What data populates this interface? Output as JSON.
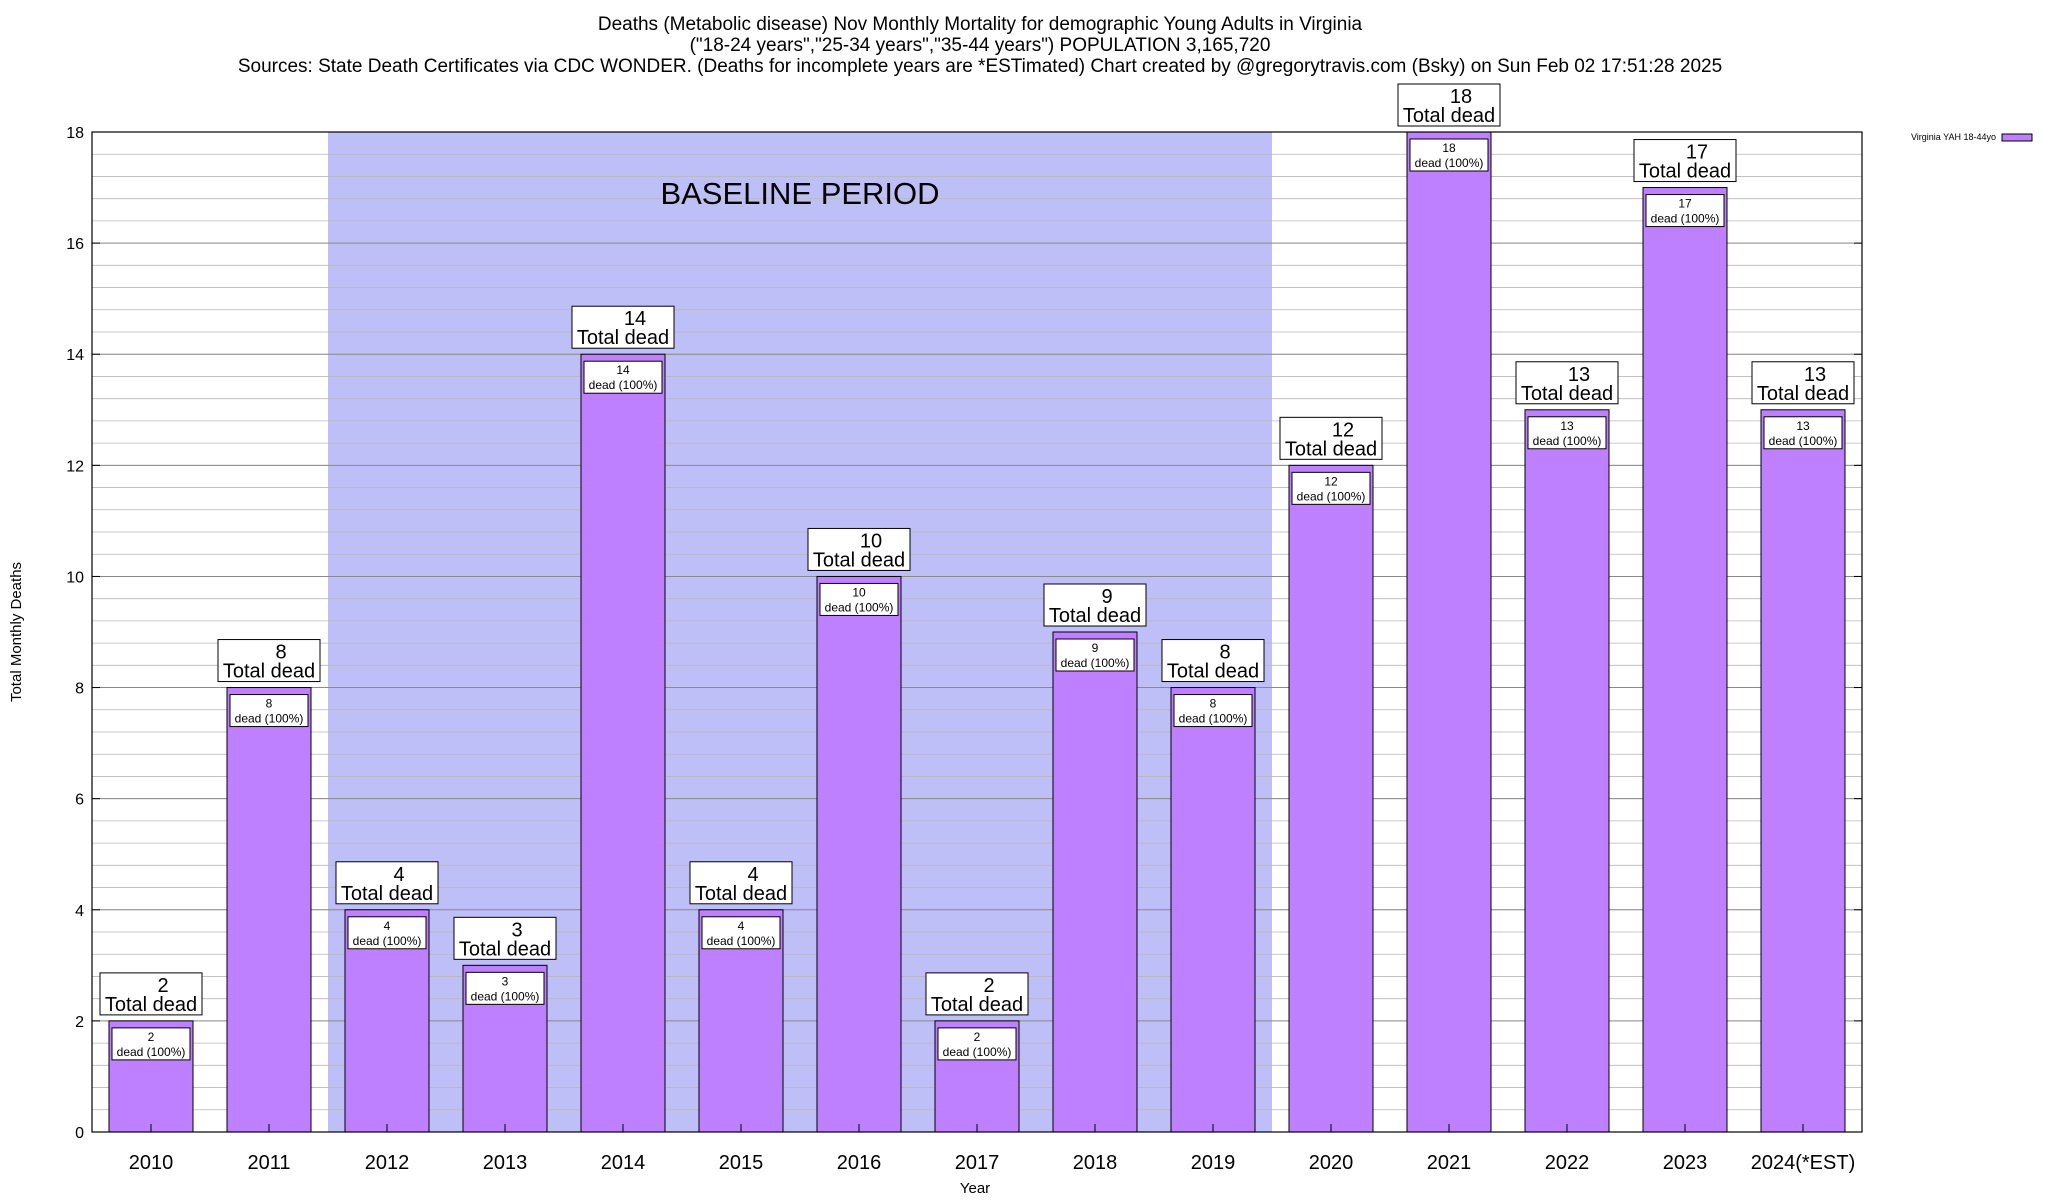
{
  "header": {
    "title_line1": "Deaths (Metabolic disease) Nov Monthly Mortality for demographic Young Adults in Virginia",
    "title_line2": "(\"18-24 years\",\"25-34 years\",\"35-44 years\") POPULATION 3,165,720",
    "title_line3": "Sources: State Death Certificates via CDC WONDER. (Deaths for incomplete years are *ESTimated)                Chart created by @gregorytravis.com (Bsky) on Sun Feb 02 17:51:28 2025"
  },
  "colors": {
    "bar_fill": "#bf80ff",
    "baseline_shade": "#bfbff7",
    "grid": "#b8b8b8"
  },
  "chart_data": {
    "type": "bar",
    "xlabel": "Year",
    "ylabel": "Total Monthly Deaths",
    "ylim": [
      0,
      18
    ],
    "y_ticks": [
      0,
      2,
      4,
      6,
      8,
      10,
      12,
      14,
      16,
      18
    ],
    "grid": true,
    "legend": {
      "label": "Virginia YAH 18-44yo",
      "placement": "top-right"
    },
    "categories": [
      "2010",
      "2011",
      "2012",
      "2013",
      "2014",
      "2015",
      "2016",
      "2017",
      "2018",
      "2019",
      "2020",
      "2021",
      "2022",
      "2023",
      "2024(*EST)"
    ],
    "values": [
      2,
      8,
      4,
      3,
      14,
      4,
      10,
      2,
      9,
      8,
      12,
      18,
      13,
      17,
      13
    ],
    "total_label_suffix": "Total dead",
    "inner_label_suffix": "dead (100%)",
    "baseline": {
      "label": "BASELINE PERIOD",
      "start": "2012",
      "end": "2019"
    }
  }
}
